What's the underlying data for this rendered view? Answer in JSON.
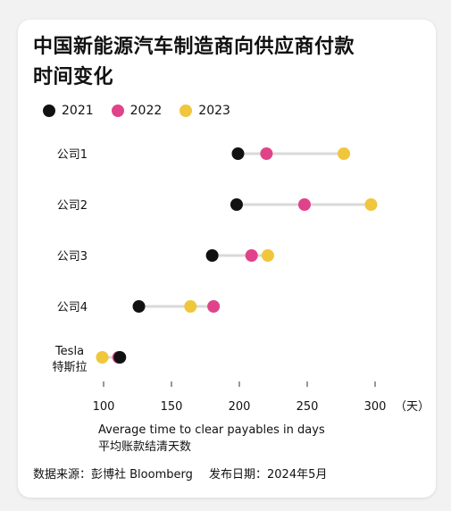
{
  "title_line1": "中国新能源汽车制造商向供应商付款",
  "title_line2": "时间变化",
  "legend": [
    {
      "label": "2021",
      "color": "#111111"
    },
    {
      "label": "2022",
      "color": "#e0438a"
    },
    {
      "label": "2023",
      "color": "#f0c63c"
    }
  ],
  "xlabel": "Average time to clear payables in days",
  "xlabel_cn": "平均账款结清天数",
  "x_unit": "（天）",
  "source": "数据来源：彭博社 Bloomberg",
  "published": "发布日期：2024年5月",
  "chart_data": {
    "type": "dot",
    "title": "中国新能源汽车制造商向供应商付款时间变化",
    "xlabel": "Average time to clear payables in days",
    "xlim": [
      95,
      305
    ],
    "xticks": [
      100,
      150,
      200,
      250,
      300
    ],
    "categories": [
      {
        "label": "公司1",
        "label2": ""
      },
      {
        "label": "公司2",
        "label2": ""
      },
      {
        "label": "公司3",
        "label2": ""
      },
      {
        "label": "公司4",
        "label2": ""
      },
      {
        "label": "Tesla",
        "label2": "特斯拉"
      }
    ],
    "series": [
      {
        "name": "2021",
        "color": "#111111",
        "values": [
          199,
          198,
          180,
          126,
          112
        ]
      },
      {
        "name": "2022",
        "color": "#e0438a",
        "values": [
          220,
          248,
          209,
          181,
          111
        ]
      },
      {
        "name": "2023",
        "color": "#f0c63c",
        "values": [
          277,
          297,
          221,
          164,
          99
        ]
      }
    ]
  }
}
